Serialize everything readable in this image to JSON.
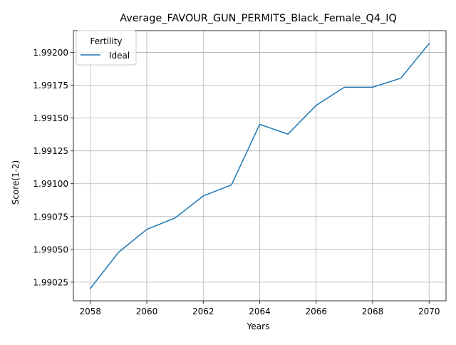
{
  "chart_data": {
    "type": "line",
    "title": "Average_FAVOUR_GUN_PERMITS_Black_Female_Q4_IQ",
    "xlabel": "Years",
    "ylabel": "Score(1-2)",
    "x": [
      2058,
      2059,
      2060,
      2061,
      2062,
      2063,
      2064,
      2065,
      2066,
      2067,
      2068,
      2069,
      2070
    ],
    "xlim": [
      2057.4,
      2070.6
    ],
    "ylim": [
      1.990108,
      1.992166
    ],
    "x_ticks": [
      2058,
      2060,
      2062,
      2064,
      2066,
      2068,
      2070
    ],
    "x_tick_labels": [
      "2058",
      "2060",
      "2062",
      "2064",
      "2066",
      "2068",
      "2070"
    ],
    "y_ticks": [
      1.99025,
      1.9905,
      1.99075,
      1.991,
      1.99125,
      1.9915,
      1.99175,
      1.992
    ],
    "y_tick_labels": [
      "1.99025",
      "1.99050",
      "1.99075",
      "1.99100",
      "1.99125",
      "1.99150",
      "1.99175",
      "1.99200"
    ],
    "grid": true,
    "legend": {
      "title": "Fertility",
      "location": "upper-left"
    },
    "series": [
      {
        "name": "Ideal",
        "color": "#1f77b4",
        "values": [
          1.990202,
          1.990478,
          1.990652,
          1.990739,
          1.990907,
          1.990991,
          1.991452,
          1.991378,
          1.991597,
          1.991735,
          1.991735,
          1.991804,
          1.992067
        ]
      }
    ]
  }
}
